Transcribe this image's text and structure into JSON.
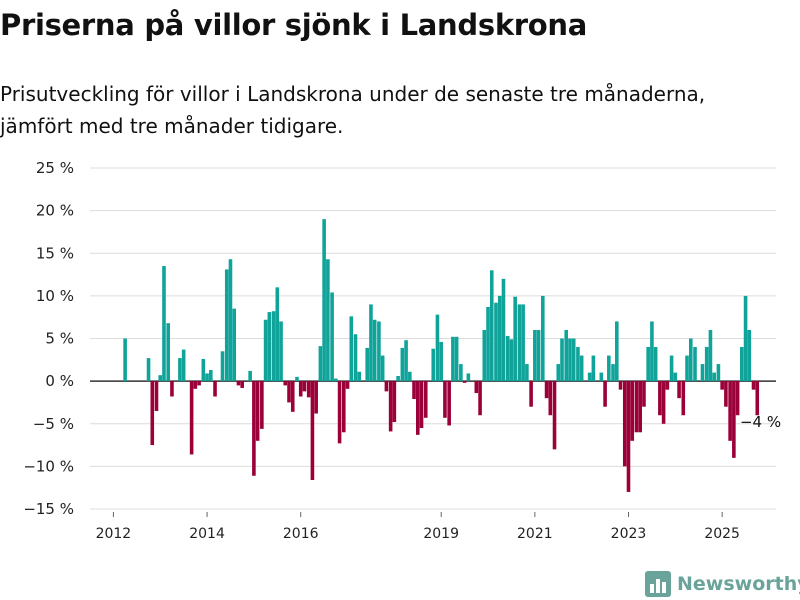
{
  "header": {
    "title": "Priserna på villor sjönk i Landskrona",
    "subtitle": "Prisutveckling för villor i Landskrona under de senaste tre månaderna, jämfört med tre månader tidigare."
  },
  "brand": {
    "name": "Newsworthy",
    "icon": "bar-chart-logo-icon",
    "color": "#6aa39a"
  },
  "chart_data": {
    "type": "bar",
    "colors": {
      "positive": "#0fa39a",
      "negative": "#9b0038",
      "grid": "#dcdcdc",
      "zero_line": "#333333"
    },
    "ylim": [
      -15,
      25
    ],
    "yticks": [
      25,
      20,
      15,
      10,
      5,
      0,
      -5,
      -10,
      -15
    ],
    "ytick_labels": [
      "25 %",
      "20 %",
      "15 %",
      "10 %",
      "5 %",
      "0 %",
      "−5 %",
      "−10 %",
      "−15 %"
    ],
    "x_tick_labels": [
      "2012",
      "2014",
      "2016",
      "2019",
      "2021",
      "2023",
      "2025"
    ],
    "x_tick_positions": [
      2012.0,
      2014.0,
      2016.0,
      2019.0,
      2021.0,
      2023.0,
      2025.0
    ],
    "xlim": [
      2011.5,
      2026.15
    ],
    "annotation": {
      "text": "−4 %",
      "x": 2025.38,
      "y": -4
    },
    "bars": [
      [
        2012.25,
        5.0
      ],
      [
        2012.75,
        2.7
      ],
      [
        2012.83,
        -7.5
      ],
      [
        2012.92,
        -3.5
      ],
      [
        2013.0,
        0.7
      ],
      [
        2013.08,
        13.5
      ],
      [
        2013.17,
        6.8
      ],
      [
        2013.25,
        -1.8
      ],
      [
        2013.42,
        2.7
      ],
      [
        2013.5,
        3.7
      ],
      [
        2013.67,
        -8.6
      ],
      [
        2013.75,
        -0.9
      ],
      [
        2013.83,
        -0.5
      ],
      [
        2013.92,
        2.6
      ],
      [
        2014.0,
        0.9
      ],
      [
        2014.08,
        1.3
      ],
      [
        2014.17,
        -1.8
      ],
      [
        2014.33,
        3.5
      ],
      [
        2014.42,
        13.1
      ],
      [
        2014.5,
        14.3
      ],
      [
        2014.58,
        8.5
      ],
      [
        2014.67,
        -0.5
      ],
      [
        2014.75,
        -0.8
      ],
      [
        2014.92,
        1.2
      ],
      [
        2015.0,
        -11.1
      ],
      [
        2015.08,
        -7.0
      ],
      [
        2015.17,
        -5.6
      ],
      [
        2015.25,
        7.2
      ],
      [
        2015.33,
        8.1
      ],
      [
        2015.42,
        8.2
      ],
      [
        2015.5,
        11.0
      ],
      [
        2015.58,
        7.0
      ],
      [
        2015.67,
        -0.5
      ],
      [
        2015.75,
        -2.5
      ],
      [
        2015.83,
        -3.6
      ],
      [
        2015.92,
        0.5
      ],
      [
        2016.0,
        -1.8
      ],
      [
        2016.08,
        -1.2
      ],
      [
        2016.17,
        -1.9
      ],
      [
        2016.25,
        -11.6
      ],
      [
        2016.33,
        -3.8
      ],
      [
        2016.42,
        4.1
      ],
      [
        2016.5,
        19.0
      ],
      [
        2016.58,
        14.3
      ],
      [
        2016.67,
        10.4
      ],
      [
        2016.75,
        0.3
      ],
      [
        2016.83,
        -7.3
      ],
      [
        2016.92,
        -6.0
      ],
      [
        2017.0,
        -0.9
      ],
      [
        2017.08,
        7.6
      ],
      [
        2017.17,
        5.5
      ],
      [
        2017.25,
        1.1
      ],
      [
        2017.42,
        3.9
      ],
      [
        2017.5,
        9.0
      ],
      [
        2017.58,
        7.2
      ],
      [
        2017.67,
        7.0
      ],
      [
        2017.75,
        3.0
      ],
      [
        2017.83,
        -1.2
      ],
      [
        2017.92,
        -5.9
      ],
      [
        2018.0,
        -4.8
      ],
      [
        2018.08,
        0.6
      ],
      [
        2018.17,
        3.9
      ],
      [
        2018.25,
        4.8
      ],
      [
        2018.33,
        1.1
      ],
      [
        2018.42,
        -2.1
      ],
      [
        2018.5,
        -6.3
      ],
      [
        2018.58,
        -5.5
      ],
      [
        2018.67,
        -4.3
      ],
      [
        2018.83,
        3.8
      ],
      [
        2018.92,
        7.8
      ],
      [
        2019.0,
        4.6
      ],
      [
        2019.08,
        -4.3
      ],
      [
        2019.17,
        -5.2
      ],
      [
        2019.25,
        5.2
      ],
      [
        2019.33,
        5.2
      ],
      [
        2019.42,
        2.0
      ],
      [
        2019.5,
        -0.2
      ],
      [
        2019.58,
        0.9
      ],
      [
        2019.75,
        -1.4
      ],
      [
        2019.83,
        -4.0
      ],
      [
        2019.92,
        6.0
      ],
      [
        2020.0,
        8.7
      ],
      [
        2020.08,
        13.0
      ],
      [
        2020.17,
        9.2
      ],
      [
        2020.25,
        10.0
      ],
      [
        2020.33,
        12.0
      ],
      [
        2020.42,
        5.3
      ],
      [
        2020.5,
        4.9
      ],
      [
        2020.58,
        9.9
      ],
      [
        2020.67,
        9.0
      ],
      [
        2020.75,
        9.0
      ],
      [
        2020.83,
        2.0
      ],
      [
        2020.92,
        -3.0
      ],
      [
        2021.0,
        6.0
      ],
      [
        2021.08,
        6.0
      ],
      [
        2021.17,
        10.0
      ],
      [
        2021.25,
        -2.0
      ],
      [
        2021.33,
        -4.0
      ],
      [
        2021.42,
        -8.0
      ],
      [
        2021.5,
        2.0
      ],
      [
        2021.58,
        5.0
      ],
      [
        2021.67,
        6.0
      ],
      [
        2021.75,
        5.0
      ],
      [
        2021.83,
        5.0
      ],
      [
        2021.92,
        4.0
      ],
      [
        2022.0,
        3.0
      ],
      [
        2022.17,
        1.0
      ],
      [
        2022.25,
        3.0
      ],
      [
        2022.42,
        1.0
      ],
      [
        2022.5,
        -3.0
      ],
      [
        2022.58,
        3.0
      ],
      [
        2022.67,
        2.0
      ],
      [
        2022.75,
        7.0
      ],
      [
        2022.83,
        -1.0
      ],
      [
        2022.92,
        -10.0
      ],
      [
        2023.0,
        -13.0
      ],
      [
        2023.08,
        -7.0
      ],
      [
        2023.17,
        -6.0
      ],
      [
        2023.25,
        -6.0
      ],
      [
        2023.33,
        -3.0
      ],
      [
        2023.42,
        4.0
      ],
      [
        2023.5,
        7.0
      ],
      [
        2023.58,
        4.0
      ],
      [
        2023.67,
        -4.0
      ],
      [
        2023.75,
        -5.0
      ],
      [
        2023.83,
        -1.0
      ],
      [
        2023.92,
        3.0
      ],
      [
        2024.0,
        1.0
      ],
      [
        2024.08,
        -2.0
      ],
      [
        2024.17,
        -4.0
      ],
      [
        2024.25,
        3.0
      ],
      [
        2024.33,
        5.0
      ],
      [
        2024.42,
        4.0
      ],
      [
        2024.58,
        2.0
      ],
      [
        2024.67,
        4.0
      ],
      [
        2024.75,
        6.0
      ],
      [
        2024.83,
        1.0
      ],
      [
        2024.92,
        2.0
      ],
      [
        2025.0,
        -1.0
      ],
      [
        2025.08,
        -3.0
      ],
      [
        2025.17,
        -7.0
      ],
      [
        2025.25,
        -9.0
      ],
      [
        2025.33,
        -4.0
      ],
      [
        2025.42,
        4.0
      ],
      [
        2025.5,
        10.0
      ],
      [
        2025.58,
        6.0
      ],
      [
        2025.67,
        -1.0
      ],
      [
        2025.75,
        -4.0
      ]
    ]
  }
}
